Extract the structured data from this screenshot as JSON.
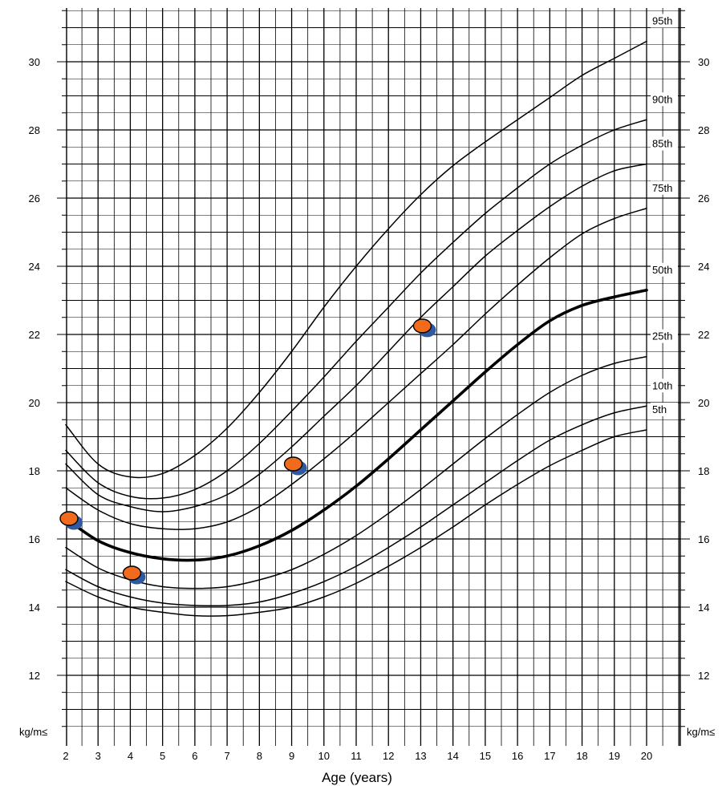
{
  "chart_data": {
    "type": "line",
    "xlabel": "Age (years)",
    "ylabel": "kg/m≤",
    "unit_label_left": "kg/m≤",
    "unit_label_right": "kg/m≤",
    "xlim": [
      2,
      20
    ],
    "ylim": [
      10.9,
      31.5
    ],
    "x_ticks": [
      2,
      3,
      4,
      5,
      6,
      7,
      8,
      9,
      10,
      11,
      12,
      13,
      14,
      15,
      16,
      17,
      18,
      19,
      20
    ],
    "y_ticks": [
      12,
      14,
      16,
      18,
      20,
      22,
      24,
      26,
      28,
      30
    ],
    "grid": true,
    "colors": {
      "grid": "#000000",
      "curve": "#000000",
      "marker_fill": "#f26a1b",
      "marker_shadow": "#2f5aa0"
    },
    "series": [
      {
        "name": "95th",
        "x": [
          2,
          3,
          4,
          5,
          6,
          7,
          8,
          9,
          10,
          11,
          12,
          13,
          14,
          15,
          16,
          17,
          18,
          19,
          20
        ],
        "values": [
          19.35,
          18.2,
          17.82,
          17.92,
          18.45,
          19.25,
          20.3,
          21.5,
          22.8,
          24.0,
          25.1,
          26.1,
          26.95,
          27.65,
          28.3,
          28.95,
          29.6,
          30.1,
          30.6
        ]
      },
      {
        "name": "90th",
        "x": [
          2,
          3,
          4,
          5,
          6,
          7,
          8,
          9,
          10,
          11,
          12,
          13,
          14,
          15,
          16,
          17,
          18,
          19,
          20
        ],
        "values": [
          18.6,
          17.65,
          17.25,
          17.2,
          17.45,
          18.0,
          18.8,
          19.75,
          20.75,
          21.8,
          22.8,
          23.8,
          24.7,
          25.55,
          26.3,
          27.0,
          27.55,
          28.0,
          28.3
        ]
      },
      {
        "name": "85th",
        "x": [
          2,
          3,
          4,
          5,
          6,
          7,
          8,
          9,
          10,
          11,
          12,
          13,
          14,
          15,
          16,
          17,
          18,
          19,
          20
        ],
        "values": [
          18.2,
          17.3,
          16.95,
          16.8,
          16.95,
          17.3,
          17.9,
          18.7,
          19.6,
          20.5,
          21.5,
          22.5,
          23.4,
          24.3,
          25.05,
          25.75,
          26.35,
          26.8,
          27.0
        ]
      },
      {
        "name": "75th",
        "x": [
          2,
          3,
          4,
          5,
          6,
          7,
          8,
          9,
          10,
          11,
          12,
          13,
          14,
          15,
          16,
          17,
          18,
          19,
          20
        ],
        "values": [
          17.5,
          16.85,
          16.45,
          16.3,
          16.3,
          16.5,
          16.95,
          17.6,
          18.35,
          19.15,
          20.0,
          20.85,
          21.7,
          22.6,
          23.45,
          24.25,
          24.95,
          25.4,
          25.7
        ]
      },
      {
        "name": "50th",
        "x": [
          2,
          3,
          4,
          5,
          6,
          7,
          8,
          9,
          10,
          11,
          12,
          13,
          14,
          15,
          16,
          17,
          18,
          19,
          20
        ],
        "values": [
          16.6,
          15.95,
          15.6,
          15.42,
          15.38,
          15.5,
          15.8,
          16.25,
          16.85,
          17.55,
          18.35,
          19.2,
          20.05,
          20.9,
          21.7,
          22.4,
          22.85,
          23.1,
          23.3
        ]
      },
      {
        "name": "25th",
        "x": [
          2,
          3,
          4,
          5,
          6,
          7,
          8,
          9,
          10,
          11,
          12,
          13,
          14,
          15,
          16,
          17,
          18,
          19,
          20
        ],
        "values": [
          15.75,
          15.15,
          14.8,
          14.6,
          14.55,
          14.6,
          14.8,
          15.1,
          15.55,
          16.1,
          16.75,
          17.45,
          18.2,
          18.95,
          19.65,
          20.3,
          20.8,
          21.15,
          21.35
        ]
      },
      {
        "name": "10th",
        "x": [
          2,
          3,
          4,
          5,
          6,
          7,
          8,
          9,
          10,
          11,
          12,
          13,
          14,
          15,
          16,
          17,
          18,
          19,
          20
        ],
        "values": [
          15.1,
          14.6,
          14.3,
          14.12,
          14.05,
          14.05,
          14.15,
          14.4,
          14.75,
          15.2,
          15.75,
          16.35,
          17.0,
          17.65,
          18.3,
          18.9,
          19.35,
          19.7,
          19.9
        ]
      },
      {
        "name": "5th",
        "x": [
          2,
          3,
          4,
          5,
          6,
          7,
          8,
          9,
          10,
          11,
          12,
          13,
          14,
          15,
          16,
          17,
          18,
          19,
          20
        ],
        "values": [
          14.75,
          14.3,
          14.0,
          13.85,
          13.75,
          13.75,
          13.85,
          14.0,
          14.3,
          14.7,
          15.2,
          15.75,
          16.35,
          17.0,
          17.6,
          18.15,
          18.6,
          19.0,
          19.2
        ]
      }
    ],
    "markers": [
      {
        "x": 2.1,
        "y": 16.6
      },
      {
        "x": 4.05,
        "y": 15.0
      },
      {
        "x": 9.05,
        "y": 18.2
      },
      {
        "x": 13.05,
        "y": 22.25
      }
    ]
  }
}
